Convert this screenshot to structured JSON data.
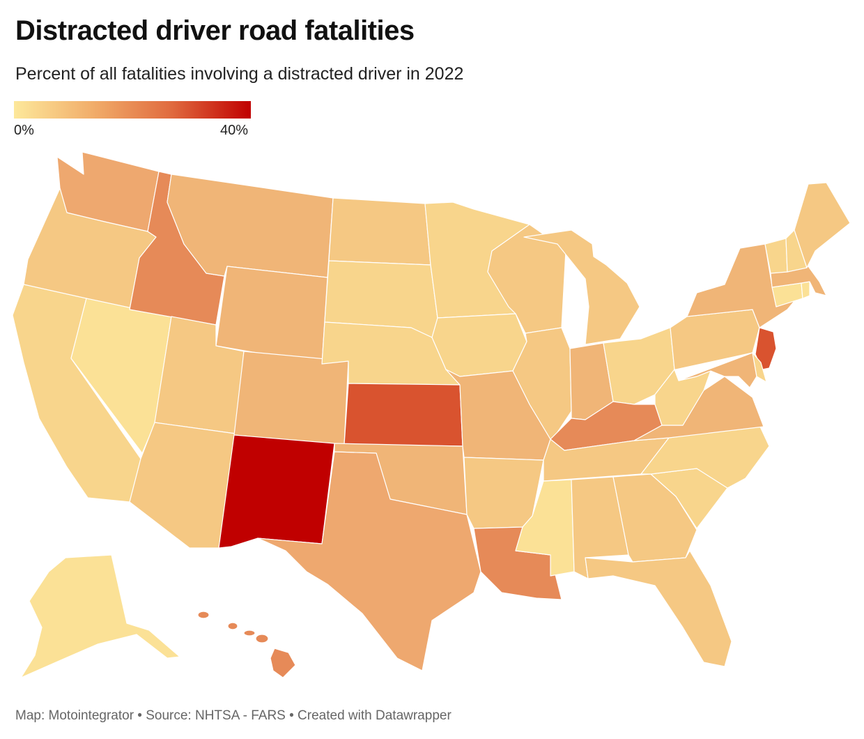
{
  "title": "Distracted driver road fatalities",
  "subtitle": "Percent of all fatalities involving a distracted driver in 2022",
  "legend": {
    "min_label": "0%",
    "max_label": "40%",
    "colors": [
      "#fde89b",
      "#f1ad6a",
      "#e06a3e",
      "#c00000"
    ]
  },
  "footer": {
    "text": "Map: Motointegrator • Source: NHTSA - FARS • Created with Datawrapper"
  },
  "palette": {
    "very_low": "#fbe196",
    "low": "#f8d58c",
    "low_mid": "#f5c883",
    "mid": "#f0b577",
    "mid_high": "#eea86f",
    "high": "#e68a58",
    "very_high": "#d9532f",
    "highest": "#c00000"
  },
  "states": [
    {
      "id": "WA",
      "level": "mid_high"
    },
    {
      "id": "OR",
      "level": "low_mid"
    },
    {
      "id": "CA",
      "level": "low"
    },
    {
      "id": "NV",
      "level": "very_low"
    },
    {
      "id": "ID",
      "level": "high"
    },
    {
      "id": "MT",
      "level": "mid"
    },
    {
      "id": "WY",
      "level": "mid"
    },
    {
      "id": "UT",
      "level": "low_mid"
    },
    {
      "id": "AZ",
      "level": "low_mid"
    },
    {
      "id": "CO",
      "level": "mid"
    },
    {
      "id": "NM",
      "level": "highest"
    },
    {
      "id": "ND",
      "level": "low_mid"
    },
    {
      "id": "SD",
      "level": "low"
    },
    {
      "id": "NE",
      "level": "low"
    },
    {
      "id": "KS",
      "level": "very_high"
    },
    {
      "id": "OK",
      "level": "mid"
    },
    {
      "id": "TX",
      "level": "mid_high"
    },
    {
      "id": "MN",
      "level": "low"
    },
    {
      "id": "IA",
      "level": "low"
    },
    {
      "id": "MO",
      "level": "mid"
    },
    {
      "id": "AR",
      "level": "low_mid"
    },
    {
      "id": "LA",
      "level": "high"
    },
    {
      "id": "WI",
      "level": "low_mid"
    },
    {
      "id": "IL",
      "level": "low_mid"
    },
    {
      "id": "MI",
      "level": "low_mid"
    },
    {
      "id": "IN",
      "level": "mid"
    },
    {
      "id": "OH",
      "level": "low"
    },
    {
      "id": "KY",
      "level": "high"
    },
    {
      "id": "TN",
      "level": "low_mid"
    },
    {
      "id": "MS",
      "level": "very_low"
    },
    {
      "id": "AL",
      "level": "low_mid"
    },
    {
      "id": "GA",
      "level": "low_mid"
    },
    {
      "id": "FL",
      "level": "low_mid"
    },
    {
      "id": "SC",
      "level": "low"
    },
    {
      "id": "NC",
      "level": "low"
    },
    {
      "id": "VA",
      "level": "mid"
    },
    {
      "id": "WV",
      "level": "low"
    },
    {
      "id": "PA",
      "level": "low_mid"
    },
    {
      "id": "NY",
      "level": "mid"
    },
    {
      "id": "NJ",
      "level": "very_high"
    },
    {
      "id": "MD",
      "level": "mid"
    },
    {
      "id": "DE",
      "level": "low"
    },
    {
      "id": "CT",
      "level": "very_low"
    },
    {
      "id": "RI",
      "level": "very_low"
    },
    {
      "id": "MA",
      "level": "mid"
    },
    {
      "id": "VT",
      "level": "low"
    },
    {
      "id": "NH",
      "level": "low"
    },
    {
      "id": "ME",
      "level": "low_mid"
    },
    {
      "id": "AK",
      "level": "very_low"
    },
    {
      "id": "HI",
      "level": "high"
    }
  ]
}
